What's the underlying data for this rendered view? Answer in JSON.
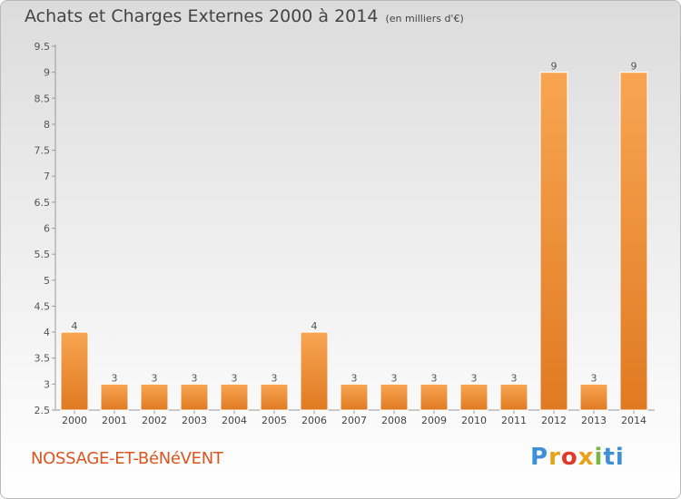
{
  "header": {
    "title": "Achats et Charges Externes 2000 à 2014",
    "unit": "(en milliers d'€)"
  },
  "footer": {
    "commune": "NOSSAGE-ET-BéNéVENT",
    "logo_text": "Proxiti"
  },
  "chart_data": {
    "type": "bar",
    "title": "Achats et Charges Externes 2000 à 2014",
    "subtitle": "(en milliers d'€)",
    "xlabel": "",
    "ylabel": "",
    "categories": [
      "2000",
      "2001",
      "2002",
      "2003",
      "2004",
      "2005",
      "2006",
      "2007",
      "2008",
      "2009",
      "2010",
      "2011",
      "2012",
      "2013",
      "2014"
    ],
    "values": [
      4,
      3,
      3,
      3,
      3,
      3,
      4,
      3,
      3,
      3,
      3,
      3,
      9,
      3,
      9
    ],
    "data_labels": [
      "4",
      "3",
      "3",
      "3",
      "3",
      "3",
      "4",
      "3",
      "3",
      "3",
      "3",
      "3",
      "9",
      "3",
      "9"
    ],
    "ylim": [
      2.5,
      9.5
    ],
    "yticks": [
      "2.5",
      "3",
      "3.5",
      "4",
      "4.5",
      "5",
      "5.5",
      "6",
      "6.5",
      "7",
      "7.5",
      "8",
      "8.5",
      "9",
      "9.5"
    ],
    "grid": false,
    "bar_color": "#f59a3c",
    "bar_color_dark": "#d9741d"
  }
}
